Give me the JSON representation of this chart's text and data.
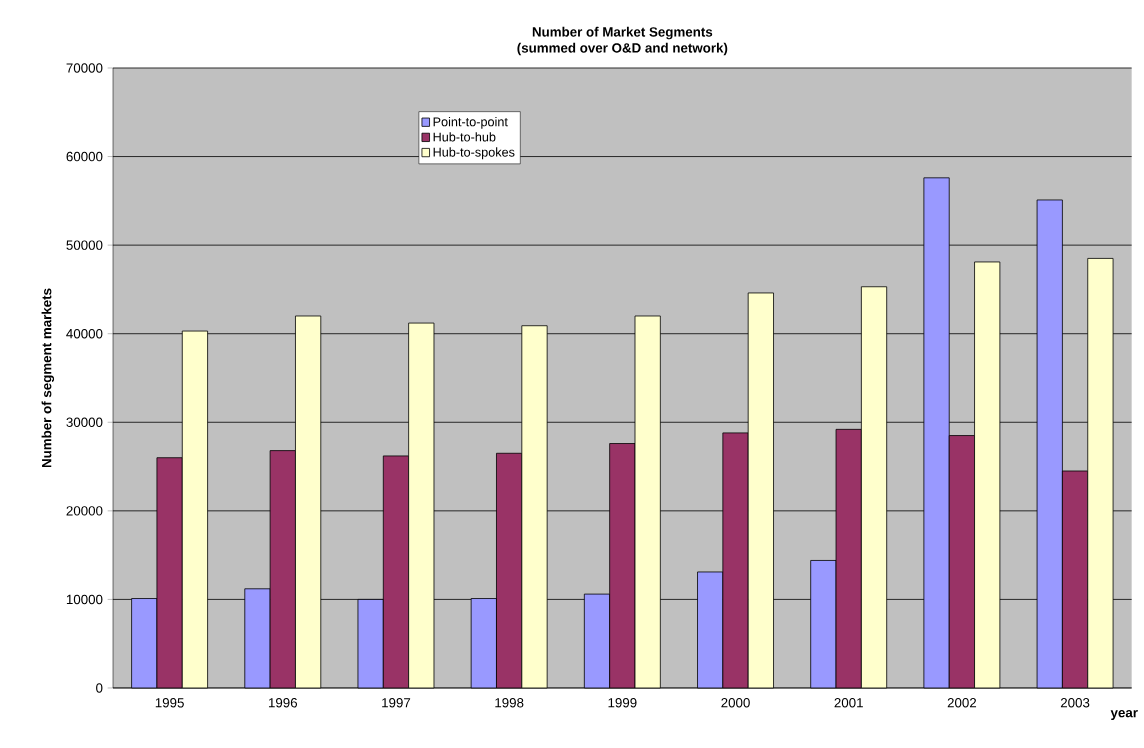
{
  "chart_data": {
    "type": "bar",
    "title": "Number of Market Segments",
    "subtitle": "(summed over O&D and network)",
    "xlabel": "year",
    "ylabel": "Number of segment markets",
    "categories": [
      "1995",
      "1996",
      "1997",
      "1998",
      "1999",
      "2000",
      "2001",
      "2002",
      "2003"
    ],
    "series": [
      {
        "name": "Point-to-point",
        "color": "#9999ff",
        "values": [
          10100,
          11200,
          10000,
          10100,
          10600,
          13100,
          14400,
          57600,
          55100
        ]
      },
      {
        "name": "Hub-to-hub",
        "color": "#993366",
        "values": [
          26000,
          26800,
          26200,
          26500,
          27600,
          28800,
          29200,
          28500,
          24500
        ]
      },
      {
        "name": "Hub-to-spokes",
        "color": "#ffffcc",
        "values": [
          40300,
          42000,
          41200,
          40900,
          42000,
          44600,
          45300,
          48100,
          48500
        ]
      }
    ],
    "ylim": [
      0,
      70000
    ],
    "yticks": [
      0,
      10000,
      20000,
      30000,
      40000,
      50000,
      60000,
      70000
    ],
    "grid": "y",
    "legend": "top"
  }
}
